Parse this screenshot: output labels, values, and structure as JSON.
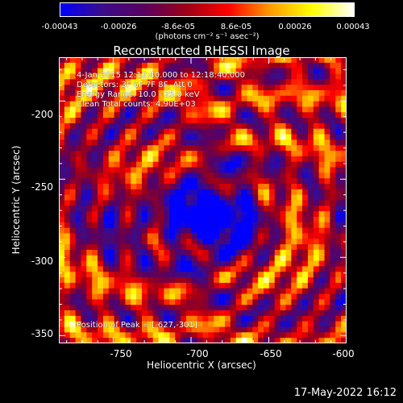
{
  "chart_data": {
    "type": "heatmap",
    "title": "Reconstructed RHESSI Image",
    "xlabel": "Heliocentric X (arcsec)",
    "ylabel": "Heliocentric Y (arcsec)",
    "xlim": [
      -785,
      -600
    ],
    "ylim": [
      -355,
      -172
    ],
    "x_ticks": [
      "-750",
      "-700",
      "-650",
      "-600"
    ],
    "y_ticks": [
      "-200",
      "-250",
      "-300",
      "-350"
    ],
    "colorbar": {
      "min": -0.00043,
      "max": 0.00043,
      "tick_labels": [
        "-0.00043",
        "-0.00026",
        "-8.6e-05",
        "8.6e-05",
        "0.00026",
        "0.00043"
      ],
      "unit_label": "(photons cm⁻² s⁻¹ asec⁻²)",
      "colormap": [
        "#0000ff",
        "#3b0d8a",
        "#5a0060",
        "#9b0017",
        "#ff0000",
        "#ff9a00",
        "#ffff00",
        "#ffffff"
      ]
    },
    "annotations": {
      "time_range": "4-Jan-2015 12:12:40.000 to 12:18:40.000",
      "detectors": "Detectors: 3F 6F 7F 8F, Att 0",
      "energy_range": "Energy Range: 10.0 - 25.0 keV",
      "method": "Clean     Total counts: 4.90E+03",
      "peak_position": "Position of Peak = [-627,-301]"
    },
    "peak": [
      -627,
      -301
    ]
  },
  "footer": {
    "timestamp": "17-May-2022 16:12"
  }
}
